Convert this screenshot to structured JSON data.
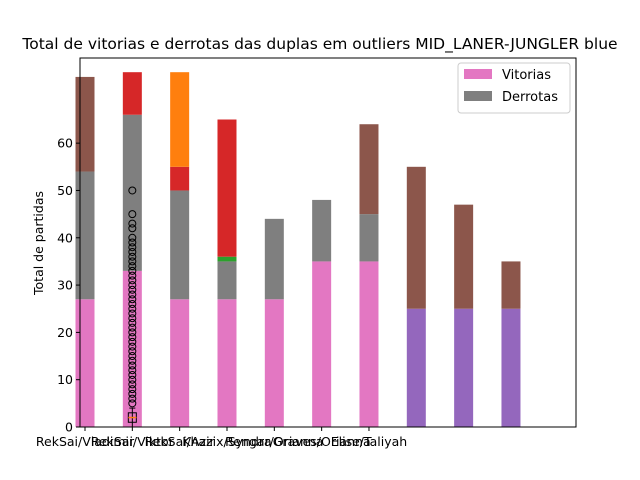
{
  "chart_data": {
    "type": "bar",
    "stacked": true,
    "title": "Total de vitorias e derrotas das duplas em outliers  MID_LANER-JUNGLER blue",
    "ylabel": "Total de partidas",
    "xlabel": "",
    "ylim": [
      0,
      78
    ],
    "yticks": [
      0,
      10,
      20,
      30,
      40,
      50,
      60
    ],
    "grid": false,
    "legend": {
      "position": "top-right",
      "entries": [
        {
          "label": "Vitorias",
          "color": "#e377c2"
        },
        {
          "label": "Derrotas",
          "color": "#7f7f7f"
        }
      ]
    },
    "tick_labels": [
      "RekSai/Vladimir",
      "RekSai/Viktor",
      "RekSai/Azir",
      "Khazix/Syndra",
      "Rengar/Orianna",
      "Graves/Orianna",
      "Elise/Taliyah"
    ],
    "bars": [
      {
        "segments": [
          {
            "value": 27,
            "color": "#e377c2"
          },
          {
            "value": 27,
            "color": "#7f7f7f"
          },
          {
            "value": 20,
            "color": "#8c564b"
          }
        ]
      },
      {
        "segments": [
          {
            "value": 33,
            "color": "#e377c2"
          },
          {
            "value": 33,
            "color": "#7f7f7f"
          },
          {
            "value": 9,
            "color": "#d62728"
          }
        ]
      },
      {
        "segments": [
          {
            "value": 27,
            "color": "#e377c2"
          },
          {
            "value": 23,
            "color": "#7f7f7f"
          },
          {
            "value": 5,
            "color": "#d62728"
          },
          {
            "value": 20,
            "color": "#ff7f0e"
          }
        ]
      },
      {
        "segments": [
          {
            "value": 27,
            "color": "#e377c2"
          },
          {
            "value": 8,
            "color": "#7f7f7f"
          },
          {
            "value": 1,
            "color": "#2ca02c"
          },
          {
            "value": 29,
            "color": "#d62728"
          }
        ]
      },
      {
        "segments": [
          {
            "value": 27,
            "color": "#e377c2"
          },
          {
            "value": 17,
            "color": "#7f7f7f"
          }
        ]
      },
      {
        "segments": [
          {
            "value": 35,
            "color": "#e377c2"
          },
          {
            "value": 13,
            "color": "#7f7f7f"
          }
        ]
      },
      {
        "segments": [
          {
            "value": 35,
            "color": "#e377c2"
          },
          {
            "value": 10,
            "color": "#7f7f7f"
          },
          {
            "value": 19,
            "color": "#8c564b"
          }
        ]
      },
      {
        "segments": [
          {
            "value": 25,
            "color": "#9467bd"
          },
          {
            "value": 30,
            "color": "#8c564b"
          }
        ]
      },
      {
        "segments": [
          {
            "value": 25,
            "color": "#9467bd"
          },
          {
            "value": 22,
            "color": "#8c564b"
          }
        ]
      },
      {
        "segments": [
          {
            "value": 25,
            "color": "#9467bd"
          },
          {
            "value": 10,
            "color": "#8c564b"
          }
        ]
      }
    ],
    "boxplot": {
      "bar_index": 1,
      "median": 2,
      "q1": 1,
      "q3": 3,
      "whisker_low": 0,
      "whisker_high": 4,
      "outliers": [
        5,
        6,
        7,
        8,
        9,
        10,
        11,
        12,
        13,
        14,
        15,
        16,
        17,
        18,
        19,
        20,
        21,
        22,
        23,
        24,
        25,
        26,
        27,
        28,
        29,
        30,
        31,
        32,
        33,
        34,
        35,
        36,
        37,
        38,
        39,
        40,
        42,
        43,
        45,
        50
      ]
    }
  }
}
